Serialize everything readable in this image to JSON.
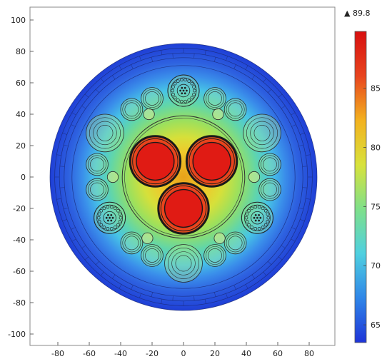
{
  "chart_data": {
    "type": "heatmap",
    "title": "",
    "xlabel": "",
    "ylabel": "",
    "xlim": [
      -110,
      110
    ],
    "ylim": [
      -110,
      110
    ],
    "x_ticks": [
      -80,
      -60,
      -40,
      -20,
      0,
      20,
      40,
      60,
      80
    ],
    "y_ticks": [
      100,
      80,
      60,
      40,
      20,
      0,
      -20,
      -40,
      -60,
      -80,
      -100
    ],
    "colorbar": {
      "max_marker_label": "▲ 89.8",
      "max": 89.8,
      "min": 63.5,
      "ticks": [
        85,
        80,
        75,
        70,
        65
      ],
      "colormap": "rainbow",
      "colors": [
        "#1e34d8",
        "#2f86e8",
        "#4fd0e0",
        "#7fe08a",
        "#d8e23c",
        "#f3b21f",
        "#e8441e",
        "#d80f0f"
      ]
    },
    "cable_geometry": {
      "outer_radius": 85,
      "sheath_inner_radius": 76,
      "inner_screen_radius": 39,
      "power_cores": [
        {
          "x": -18,
          "y": 10,
          "r_conductor": 12,
          "r_insulation": 16
        },
        {
          "x": 18,
          "y": 10,
          "r_conductor": 12,
          "r_insulation": 16
        },
        {
          "x": 0,
          "y": -20,
          "r_conductor": 12,
          "r_insulation": 16
        }
      ],
      "fiber_units": [
        {
          "x": 0,
          "y": 55,
          "r": 10
        },
        {
          "x": -47,
          "y": -26,
          "r": 10
        },
        {
          "x": 47,
          "y": -26,
          "r": 10
        }
      ],
      "large_fillers": [
        {
          "x": -50,
          "y": 28,
          "r": 12
        },
        {
          "x": 50,
          "y": 28,
          "r": 12
        },
        {
          "x": 0,
          "y": -55,
          "r": 12
        }
      ],
      "small_fillers": [
        {
          "x": -20,
          "y": 50,
          "r": 7
        },
        {
          "x": 20,
          "y": 50,
          "r": 7
        },
        {
          "x": -33,
          "y": 43,
          "r": 7
        },
        {
          "x": 33,
          "y": 43,
          "r": 7
        },
        {
          "x": -55,
          "y": 8,
          "r": 7
        },
        {
          "x": 55,
          "y": 8,
          "r": 7
        },
        {
          "x": -55,
          "y": -8,
          "r": 7
        },
        {
          "x": 55,
          "y": -8,
          "r": 7
        },
        {
          "x": -33,
          "y": -42,
          "r": 7
        },
        {
          "x": 33,
          "y": -42,
          "r": 7
        },
        {
          "x": -20,
          "y": -50,
          "r": 7
        },
        {
          "x": 20,
          "y": -50,
          "r": 7
        }
      ],
      "tiny_fillers": [
        {
          "x": -22,
          "y": 40,
          "r": 3.5
        },
        {
          "x": 22,
          "y": 40,
          "r": 3.5
        },
        {
          "x": -45,
          "y": 0,
          "r": 3.5
        },
        {
          "x": 45,
          "y": 0,
          "r": 3.5
        },
        {
          "x": -23,
          "y": -39,
          "r": 3.5
        },
        {
          "x": 23,
          "y": -39,
          "r": 3.5
        }
      ]
    }
  }
}
